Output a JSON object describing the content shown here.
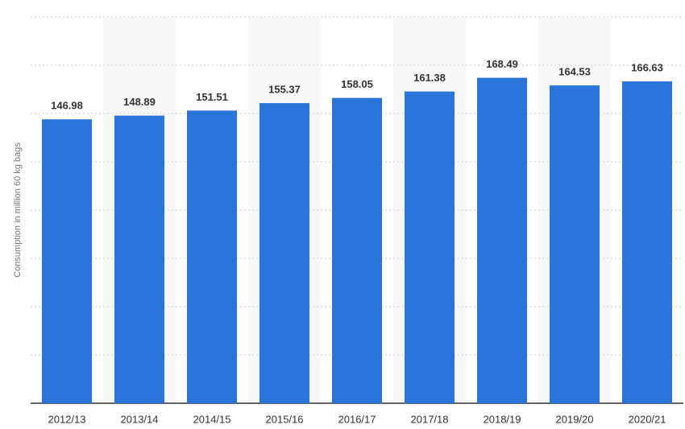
{
  "chart_data": {
    "type": "bar",
    "y_label": "Consumption in million 60 kg bags",
    "categories": [
      "2012/13",
      "2013/14",
      "2014/15",
      "2015/16",
      "2016/17",
      "2017/18",
      "2018/19",
      "2019/20",
      "2020/21"
    ],
    "values": [
      146.98,
      148.89,
      151.51,
      155.37,
      158.05,
      161.38,
      168.49,
      164.53,
      166.63
    ],
    "color": "#2874d9",
    "ylim": [
      0,
      200
    ],
    "yticks": [
      0,
      25,
      50,
      75,
      100,
      125,
      150,
      175,
      200
    ],
    "grid": true
  }
}
